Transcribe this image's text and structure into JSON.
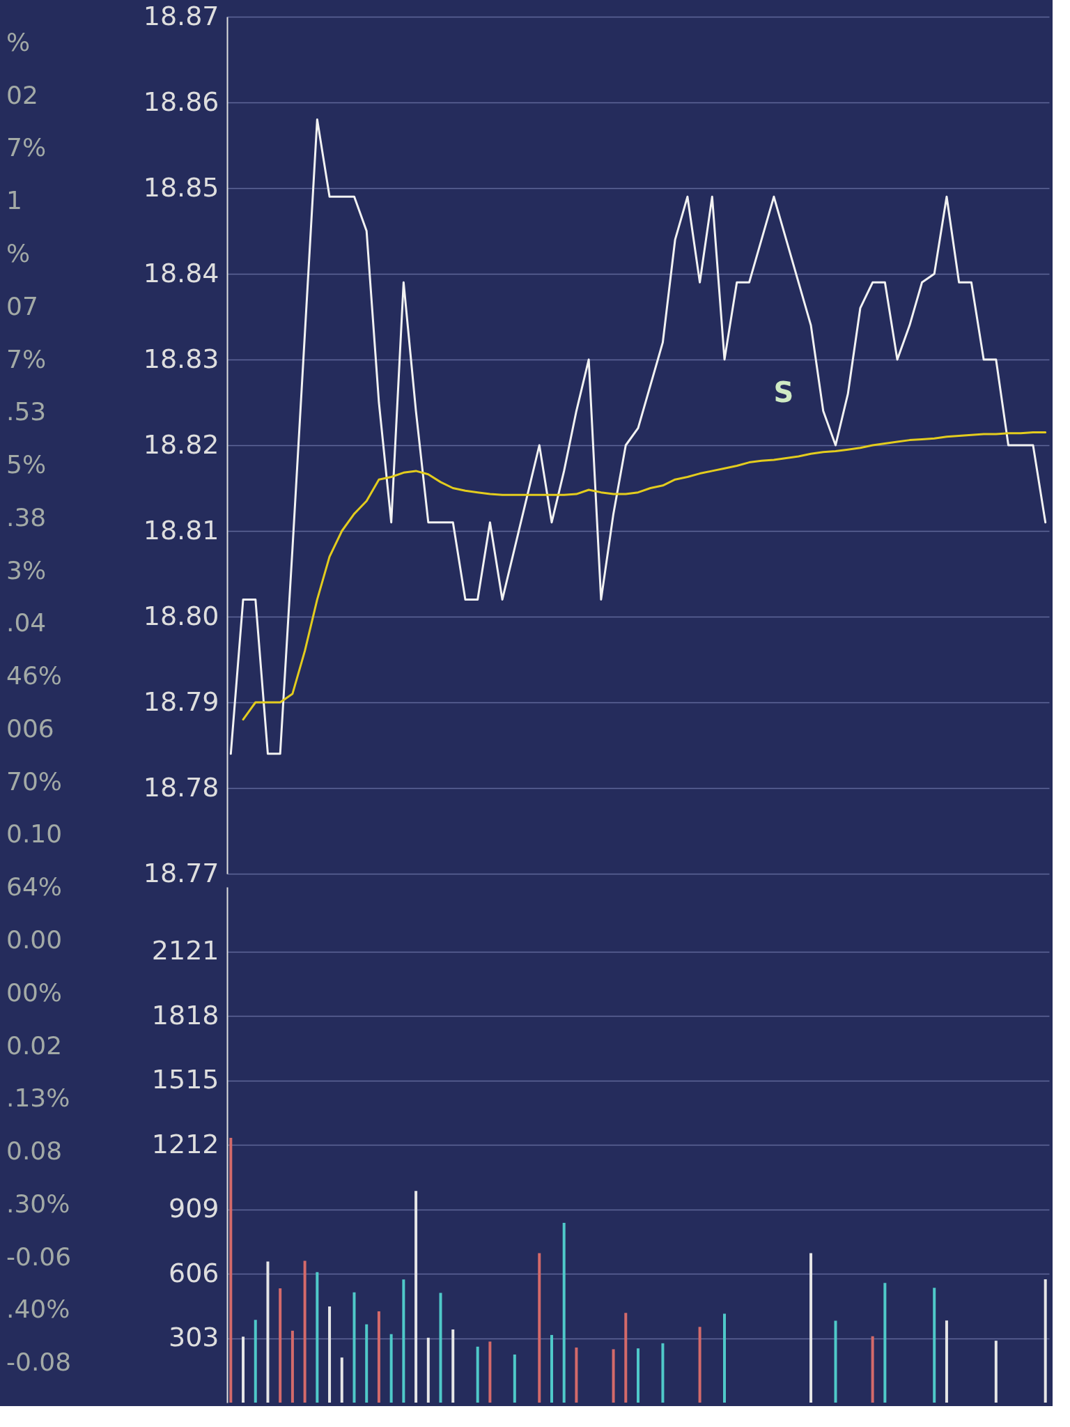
{
  "chart_data": [
    {
      "type": "other",
      "annotations": [
        "%",
        "02",
        "7%",
        "1",
        "%",
        "07",
        "7%",
        ".53",
        "5%",
        ".38",
        "3%",
        ".04",
        "46%",
        "006",
        "70%",
        "0.10",
        "64%",
        "0.00",
        "00%",
        "0.02",
        ".13%",
        "0.08",
        ".30%",
        "-0.06",
        ".40%",
        "-0.08"
      ]
    },
    {
      "type": "line",
      "categories": [
        null,
        null,
        null,
        null,
        null,
        null,
        null,
        null,
        null,
        null,
        null,
        null,
        null,
        null,
        null,
        null,
        null,
        null,
        null,
        null,
        null,
        null,
        null,
        null,
        null,
        null,
        null,
        null,
        null,
        null,
        null,
        null,
        null,
        null,
        null,
        null,
        null,
        null,
        null,
        null,
        null,
        null,
        null,
        null,
        null,
        null,
        null,
        null,
        null,
        null,
        null,
        null,
        null,
        null,
        null,
        null,
        null,
        null,
        null,
        null,
        null,
        null,
        null,
        null,
        null,
        null,
        null
      ],
      "series": [
        {
          "color": "#f2f2f2",
          "values": [
            18.784,
            18.802,
            18.802,
            18.784,
            18.784,
            18.808,
            18.833,
            18.858,
            18.849,
            18.849,
            18.849,
            18.845,
            18.825,
            18.811,
            18.839,
            18.824,
            18.811,
            18.811,
            18.811,
            18.802,
            18.802,
            18.811,
            18.802,
            18.808,
            18.814,
            18.82,
            18.811,
            18.817,
            18.824,
            18.83,
            18.802,
            18.812,
            18.82,
            18.822,
            18.827,
            18.832,
            18.844,
            18.849,
            18.839,
            18.849,
            18.83,
            18.839,
            18.839,
            18.844,
            18.849,
            18.844,
            18.839,
            18.834,
            18.824,
            18.82,
            18.826,
            18.836,
            18.839,
            18.839,
            18.83,
            18.834,
            18.839,
            18.84,
            18.849,
            18.839,
            18.839,
            18.83,
            18.83,
            18.82,
            18.82,
            18.82,
            18.811
          ]
        },
        {
          "color": "#e3cc1e",
          "values": [
            null,
            18.788,
            18.79,
            18.79,
            18.79,
            18.791,
            18.796,
            18.802,
            18.807,
            18.81,
            18.812,
            18.8135,
            18.816,
            18.8163,
            18.8168,
            18.817,
            18.8166,
            18.8157,
            18.815,
            18.8147,
            18.8145,
            18.8143,
            18.8142,
            18.8142,
            18.8142,
            18.8142,
            18.8142,
            18.8142,
            18.8143,
            18.8148,
            18.8145,
            18.8143,
            18.8143,
            18.8145,
            18.815,
            18.8153,
            18.816,
            18.8163,
            18.8167,
            18.817,
            18.8173,
            18.8176,
            18.818,
            18.8182,
            18.8183,
            18.8185,
            18.8187,
            18.819,
            18.8192,
            18.8193,
            18.8195,
            18.8197,
            18.82,
            18.8202,
            18.8204,
            18.8206,
            18.8207,
            18.8208,
            18.821,
            18.8211,
            18.8212,
            18.8213,
            18.8213,
            18.8214,
            18.8214,
            18.8215,
            18.8215
          ]
        }
      ],
      "ylim": [
        18.77,
        18.87
      ],
      "yticks": [
        18.77,
        18.78,
        18.79,
        {
          "value": 18.8,
          "label": "18.80"
        },
        18.81,
        18.82,
        18.83,
        18.84,
        18.85,
        18.86,
        18.87
      ],
      "grid": "y",
      "tick_labels": "y",
      "annotations": [
        "S"
      ]
    },
    {
      "type": "bar",
      "categories": [
        null,
        null,
        null,
        null,
        null,
        null,
        null,
        null,
        null,
        null,
        null,
        null,
        null,
        null,
        null,
        null,
        null,
        null,
        null,
        null,
        null,
        null,
        null,
        null,
        null,
        null,
        null,
        null,
        null,
        null,
        null,
        null,
        null,
        null,
        null,
        null,
        null,
        null,
        null,
        null,
        null,
        null,
        null,
        null,
        null,
        null,
        null,
        null,
        null,
        null,
        null,
        null,
        null,
        null,
        null,
        null,
        null,
        null,
        null,
        null,
        null,
        null,
        null,
        null,
        null,
        null,
        null
      ],
      "values": [
        1245,
        310,
        389,
        663,
        537,
        338,
        667,
        613,
        452,
        212,
        518,
        368,
        429,
        322,
        579,
        995,
        305,
        516,
        344,
        null,
        263,
        287,
        null,
        226,
        null,
        703,
        318,
        845,
        259,
        null,
        null,
        251,
        422,
        255,
        null,
        279,
        null,
        null,
        356,
        null,
        418,
        null,
        null,
        null,
        null,
        null,
        null,
        703,
        null,
        385,
        null,
        null,
        312,
        563,
        null,
        null,
        null,
        540,
        386,
        null,
        null,
        null,
        291,
        null,
        null,
        null,
        580
      ],
      "colors": [
        "#d46a6a",
        "#e6e6e6",
        "#4fc9c9",
        "#e6e6e6",
        "#d46a6a",
        "#d46a6a",
        "#d46a6a",
        "#4fc9c9",
        "#e6e6e6",
        "#e6e6e6",
        "#4fc9c9",
        "#4fc9c9",
        "#d46a6a",
        "#4fc9c9",
        "#4fc9c9",
        "#e6e6e6",
        "#e6e6e6",
        "#4fc9c9",
        "#e6e6e6",
        null,
        "#4fc9c9",
        "#d46a6a",
        null,
        "#4fc9c9",
        null,
        "#d46a6a",
        "#4fc9c9",
        "#4fc9c9",
        "#d46a6a",
        null,
        null,
        "#d46a6a",
        "#d46a6a",
        "#4fc9c9",
        null,
        "#4fc9c9",
        null,
        null,
        "#d46a6a",
        null,
        "#4fc9c9",
        null,
        null,
        null,
        null,
        null,
        null,
        "#e6e6e6",
        null,
        "#4fc9c9",
        null,
        null,
        "#d46a6a",
        "#4fc9c9",
        null,
        null,
        null,
        "#4fc9c9",
        "#e6e6e6",
        null,
        null,
        null,
        "#e6e6e6",
        null,
        null,
        null,
        "#e6e6e6"
      ],
      "ylim": [
        0,
        2424
      ],
      "yticks": [
        303,
        606,
        909,
        1212,
        1515,
        1818,
        2121
      ],
      "grid": "y",
      "tick_labels": "y"
    }
  ]
}
